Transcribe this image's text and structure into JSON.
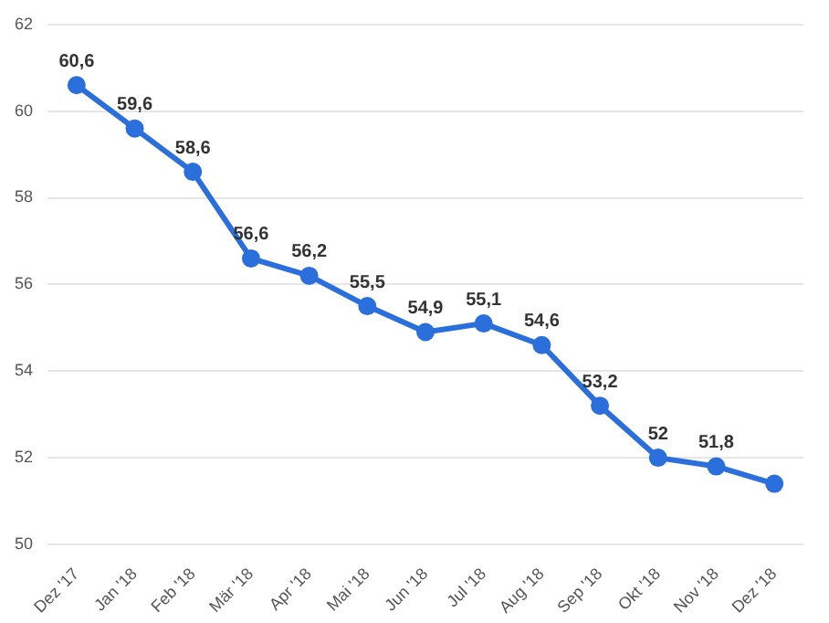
{
  "chart_data": {
    "type": "line",
    "categories": [
      "Dez '17",
      "Jan '18",
      "Feb '18",
      "Mär '18",
      "Apr '18",
      "Mai '18",
      "Jun '18",
      "Jul '18",
      "Aug '18",
      "Sep '18",
      "Okt '18",
      "Nov '18",
      "Dez '18"
    ],
    "series": [
      {
        "color": "#2a6fdb",
        "values": [
          60.6,
          59.6,
          58.6,
          56.6,
          56.2,
          55.5,
          54.9,
          55.1,
          54.6,
          53.2,
          52,
          51.8,
          51.4
        ]
      }
    ],
    "value_labels": [
      "60,6",
      "59,6",
      "58,6",
      "56,6",
      "56,2",
      "55,5",
      "54,9",
      "55,1",
      "54,6",
      "53,2",
      "52",
      "51,8",
      null
    ],
    "ylim": [
      50,
      62
    ],
    "yticks": [
      50,
      52,
      54,
      56,
      58,
      60,
      62
    ],
    "grid": "y",
    "marker": "circle",
    "line_style": "solid",
    "legend": false
  }
}
